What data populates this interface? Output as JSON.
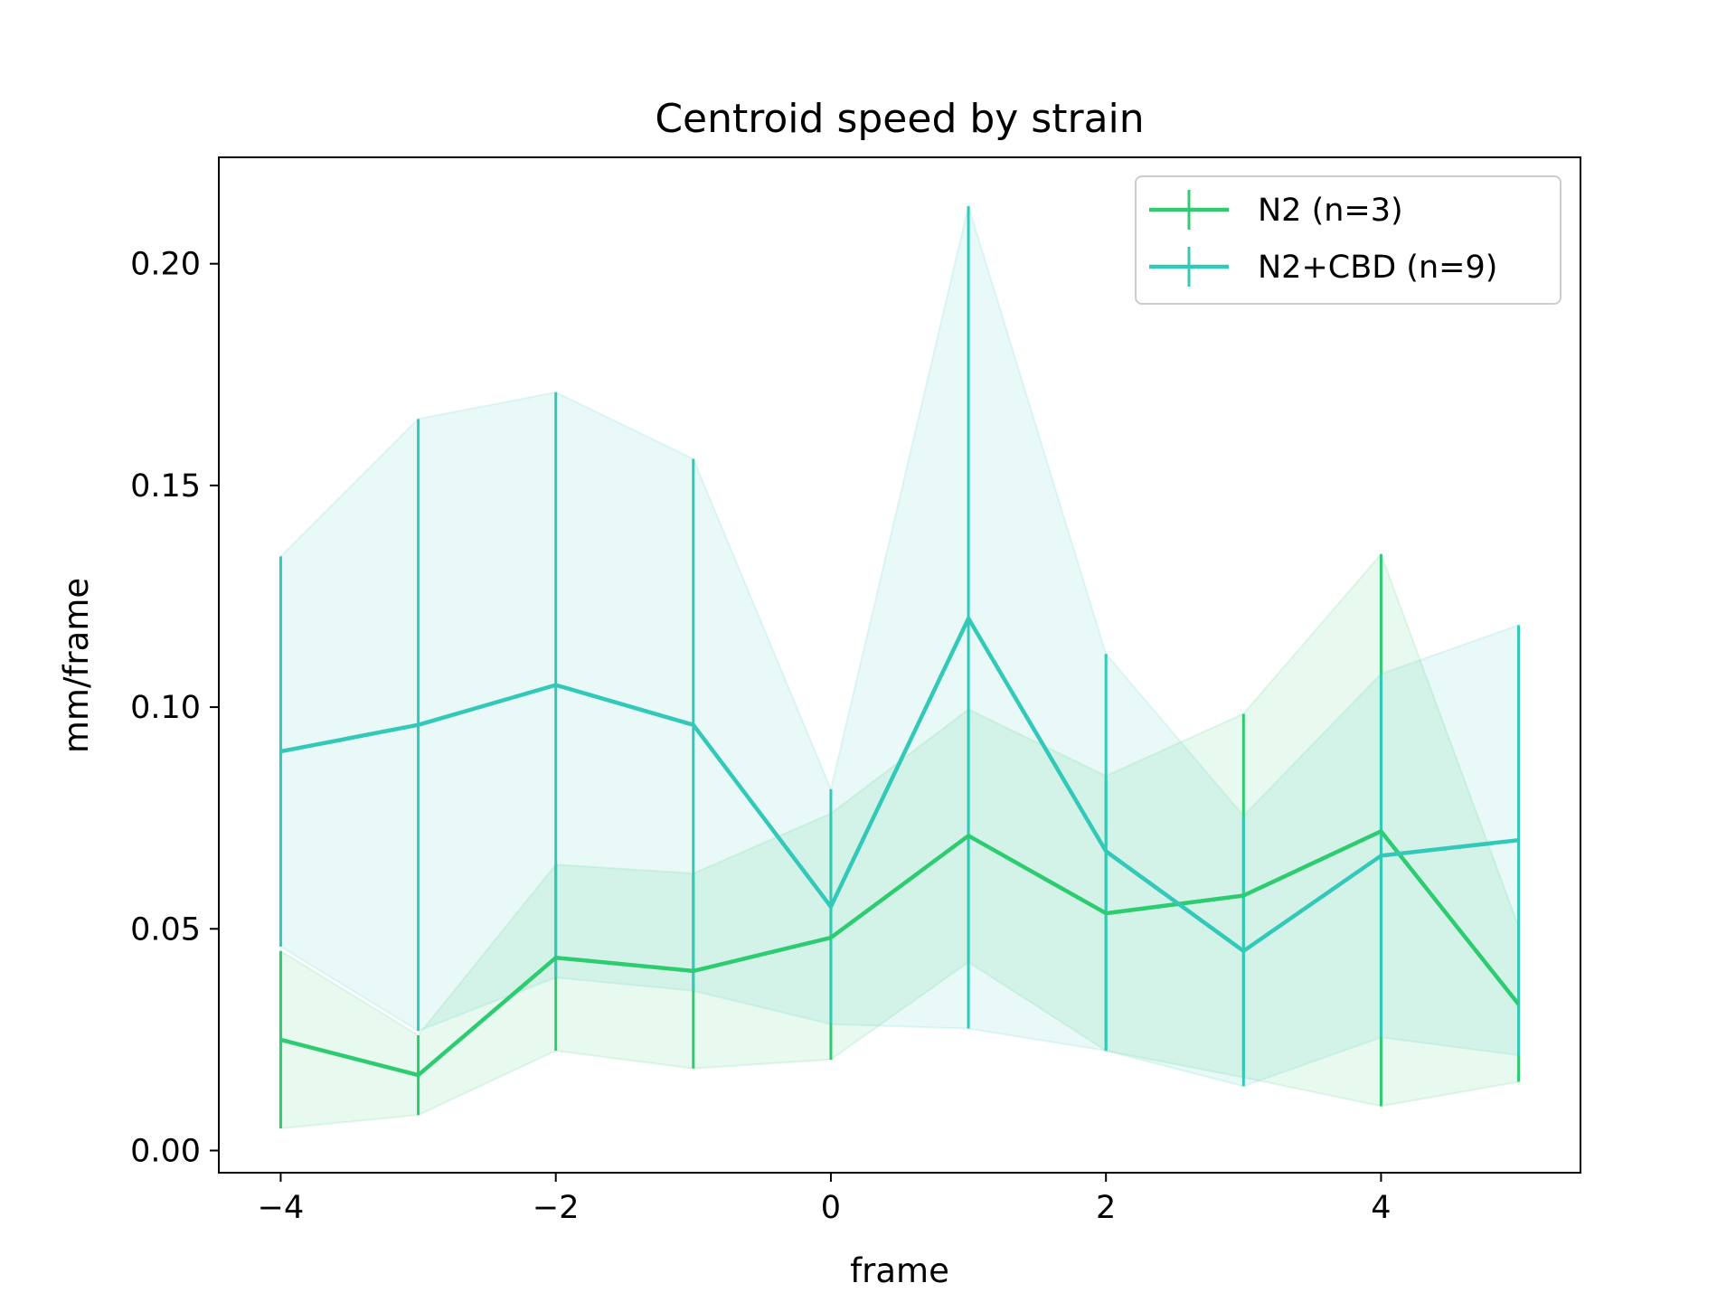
{
  "chart_data": {
    "type": "line",
    "title": "Centroid speed by strain",
    "xlabel": "frame",
    "ylabel": "mm/frame",
    "x": [
      -4,
      -3,
      -2,
      -1,
      0,
      1,
      2,
      3,
      4,
      5
    ],
    "xlim": [
      -4.45,
      5.45
    ],
    "ylim": [
      -0.005,
      0.224
    ],
    "xticks": [
      -4,
      -2,
      0,
      2,
      4
    ],
    "xtick_labels": [
      "−4",
      "−2",
      "0",
      "2",
      "4"
    ],
    "yticks": [
      0.0,
      0.05,
      0.1,
      0.15,
      0.2
    ],
    "ytick_labels": [
      "0.00",
      "0.05",
      "0.10",
      "0.15",
      "0.20"
    ],
    "grid": false,
    "legend_position": "top-right",
    "series": [
      {
        "name": "N2 (n=3)",
        "color": "#2ecc71",
        "values": [
          0.025,
          0.017,
          0.0435,
          0.0405,
          0.048,
          0.071,
          0.0535,
          0.0575,
          0.072,
          0.033
        ],
        "lower": [
          0.005,
          0.008,
          0.0225,
          0.0185,
          0.0205,
          0.0425,
          0.0225,
          0.0165,
          0.01,
          0.0155
        ],
        "upper": [
          0.045,
          0.026,
          0.0645,
          0.0625,
          0.076,
          0.0995,
          0.0845,
          0.0985,
          0.1345,
          0.0505
        ]
      },
      {
        "name": "N2+CBD (n=9)",
        "color": "#33c9b8",
        "values": [
          0.09,
          0.096,
          0.105,
          0.096,
          0.055,
          0.12,
          0.0675,
          0.045,
          0.0665,
          0.07
        ],
        "lower": [
          0.046,
          0.027,
          0.039,
          0.036,
          0.0285,
          0.0275,
          0.0225,
          0.0145,
          0.0255,
          0.0215
        ],
        "upper": [
          0.134,
          0.165,
          0.171,
          0.156,
          0.0815,
          0.213,
          0.112,
          0.0755,
          0.1075,
          0.1185
        ]
      }
    ]
  }
}
